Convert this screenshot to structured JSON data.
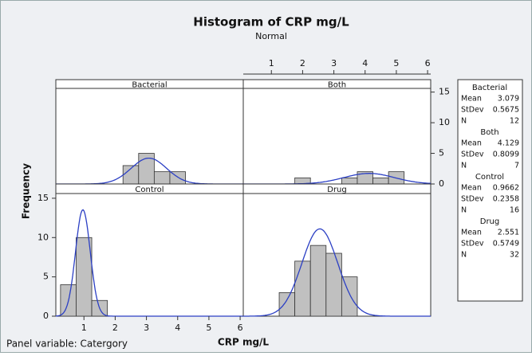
{
  "chart_data": {
    "type": "histogram",
    "title": "Histogram of CRP mg/L",
    "subtitle": "Normal",
    "x_label": "CRP mg/L",
    "y_label": "Frequency",
    "footer": "Panel variable: Catergory",
    "bins": [
      0.25,
      0.75,
      1.25,
      1.75,
      2.25,
      2.75,
      3.25,
      3.75,
      4.25,
      4.75,
      5.25
    ],
    "xlim": [
      0.1,
      6.1
    ],
    "xticks": [
      1,
      2,
      3,
      4,
      5,
      6
    ],
    "ylim": [
      0,
      15.6
    ],
    "yticks": [
      0,
      5,
      10,
      15
    ],
    "bar_color": "#c0c0c0",
    "curve_color": "#2b3fc4",
    "stat_labels": [
      "Mean",
      "StDev",
      "N"
    ],
    "panels": [
      {
        "name": "Bacterial",
        "counts": [
          0,
          0,
          0,
          0,
          3,
          5,
          2,
          2,
          0,
          0
        ],
        "mean": 3.079,
        "stdev": 0.5675,
        "n": 12
      },
      {
        "name": "Both",
        "counts": [
          0,
          0,
          0,
          1,
          0,
          0,
          1,
          2,
          1,
          2
        ],
        "mean": 4.129,
        "stdev": 0.8099,
        "n": 7
      },
      {
        "name": "Control",
        "counts": [
          4,
          10,
          2,
          0,
          0,
          0,
          0,
          0,
          0,
          0
        ],
        "mean": 0.9662,
        "stdev": 0.2358,
        "n": 16
      },
      {
        "name": "Drug",
        "counts": [
          0,
          0,
          3,
          7,
          9,
          8,
          5,
          0,
          0,
          0
        ],
        "mean": 2.551,
        "stdev": 0.5749,
        "n": 32
      }
    ]
  }
}
